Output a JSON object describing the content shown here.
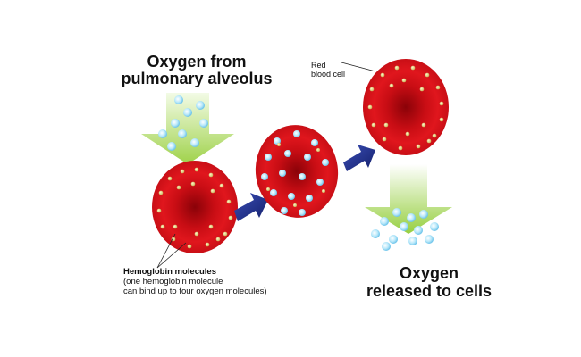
{
  "labels": {
    "oxygen_from_line1": "Oxygen from",
    "oxygen_from_line2": "pulmonary alveolus",
    "red_blood_cell_line1": "Red",
    "red_blood_cell_line2": "blood cell",
    "hemoglobin_title": "Hemoglobin molecules",
    "hemoglobin_note_line1": "(one hemoglobin molecule",
    "hemoglobin_note_line2": "can bind up to four oxygen molecules)",
    "oxygen_released_line1": "Oxygen",
    "oxygen_released_line2": "released to cells"
  },
  "colors": {
    "cell_red": "#d8141b",
    "cell_dark": "#a00810",
    "arrow_green": "#a6d64a",
    "arrow_blue": "#1f2f8f",
    "oxygen_blue": "#8fd6f2",
    "hemoglobin_dot": "#d9c56a"
  }
}
